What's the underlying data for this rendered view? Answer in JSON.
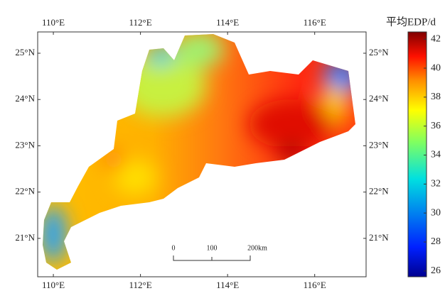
{
  "map": {
    "lon_ticks": [
      {
        "value": 110,
        "label": "110°E"
      },
      {
        "value": 112,
        "label": "112°E"
      },
      {
        "value": 114,
        "label": "114°E"
      },
      {
        "value": 116,
        "label": "116°E"
      }
    ],
    "lat_ticks": [
      {
        "value": 25,
        "label": "25°N"
      },
      {
        "value": 24,
        "label": "24°N"
      },
      {
        "value": 23,
        "label": "23°N"
      },
      {
        "value": 22,
        "label": "22°N"
      },
      {
        "value": 21,
        "label": "21°N"
      }
    ],
    "lon_range": [
      109.64,
      117.18
    ],
    "lat_range": [
      20.17,
      25.46
    ]
  },
  "colorbar": {
    "title": "平均EDP/d",
    "ticks": [
      26,
      28,
      30,
      32,
      34,
      36,
      38,
      40,
      42
    ],
    "range": [
      25.6,
      42.5
    ]
  },
  "scale_bar": {
    "labels": [
      "0",
      "100",
      "200km"
    ]
  }
}
